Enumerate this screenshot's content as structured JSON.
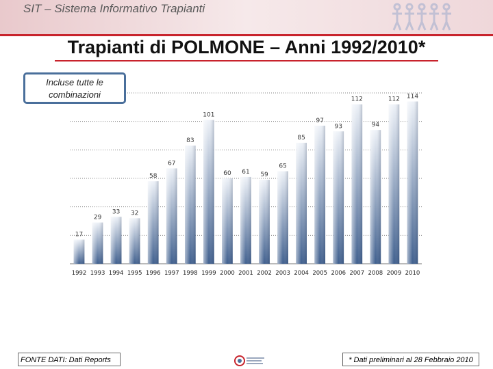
{
  "header": {
    "title": "SIT – Sistema Informativo Trapianti",
    "logo_icon": "people-chain-logo-icon"
  },
  "page_title": "Trapianti di POLMONE – Anni 1992/2010*",
  "callout": {
    "text": "Incluse tutte le combinazioni"
  },
  "chart_data": {
    "type": "bar",
    "title": "",
    "xlabel": "",
    "ylabel": "",
    "categories": [
      "1992",
      "1993",
      "1994",
      "1995",
      "1996",
      "1997",
      "1998",
      "1999",
      "2000",
      "2001",
      "2002",
      "2003",
      "2004",
      "2005",
      "2006",
      "2007",
      "2008",
      "2009",
      "2010"
    ],
    "values": [
      17,
      29,
      33,
      32,
      58,
      67,
      83,
      101,
      60,
      61,
      59,
      65,
      85,
      97,
      93,
      112,
      94,
      112,
      114
    ],
    "ylim": [
      0,
      120
    ],
    "grid": true,
    "legend": "none",
    "colors": {
      "bar_top": "#eef2f8",
      "bar_bottom": "#3f5f8e",
      "grid": "#808080"
    }
  },
  "footer": {
    "source": "FONTE DATI: Dati Reports",
    "note": "* Dati preliminari al 28 Febbraio 2010",
    "logo_icon": "centro-nazionale-trapianti-logo-icon"
  }
}
